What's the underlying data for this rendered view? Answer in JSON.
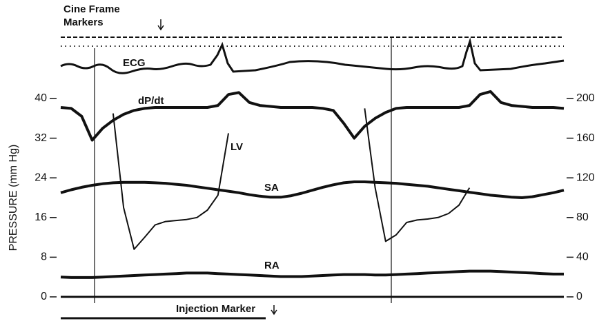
{
  "chart_data": {
    "type": "line",
    "top_label_lines": [
      "Cine Frame",
      "Markers"
    ],
    "ecg_label": "ECG",
    "injection_label": "Injection Marker",
    "ylabel": "PRESSURE (mm Hg)",
    "ylim": [
      0,
      40
    ],
    "yticks": [
      0,
      8,
      16,
      24,
      32,
      40
    ],
    "y2lim": [
      0,
      200
    ],
    "y2ticks": [
      0,
      40,
      80,
      120,
      160,
      200
    ],
    "series": [
      {
        "name": "dP/dt",
        "color": "#111111",
        "axis": "y2",
        "values": [
          191,
          190,
          182,
          158,
          170,
          178,
          184,
          188,
          190,
          191,
          191,
          191,
          191,
          191,
          191,
          193,
          204,
          206,
          196,
          193,
          192,
          191,
          191,
          191,
          191,
          190,
          188,
          175,
          160,
          172,
          180,
          186,
          190,
          191,
          191,
          191,
          191,
          191,
          191,
          193,
          204,
          207,
          196,
          193,
          192,
          191,
          191,
          191,
          190
        ]
      },
      {
        "name": "LV",
        "color": "#111111",
        "values": [
          null,
          null,
          null,
          null,
          null,
          37,
          18,
          9.6,
          12,
          14.5,
          15.2,
          15.4,
          15.6,
          16.0,
          17.5,
          20.5,
          33,
          null,
          null,
          null,
          null,
          null,
          null,
          null,
          null,
          null,
          null,
          null,
          null,
          38,
          22,
          11.2,
          12.5,
          15,
          15.5,
          15.7,
          16,
          16.8,
          18.5,
          22,
          null,
          null,
          null,
          null,
          null,
          null,
          null,
          null,
          null
        ]
      },
      {
        "name": "SA",
        "color": "#111111",
        "values": [
          21.0,
          21.6,
          22.1,
          22.5,
          22.8,
          23.0,
          23.1,
          23.1,
          23.1,
          23.0,
          22.9,
          22.7,
          22.5,
          22.2,
          21.9,
          21.6,
          21.3,
          21.0,
          20.6,
          20.3,
          20.1,
          20.1,
          20.4,
          20.9,
          21.5,
          22.1,
          22.6,
          23.0,
          23.2,
          23.2,
          23.1,
          23.0,
          22.9,
          22.7,
          22.5,
          22.3,
          22.0,
          21.7,
          21.4,
          21.1,
          20.8,
          20.5,
          20.3,
          20.1,
          20.0,
          20.2,
          20.6,
          21.0,
          21.5
        ]
      },
      {
        "name": "RA",
        "color": "#111111",
        "values": [
          4.0,
          3.9,
          3.9,
          3.9,
          4.0,
          4.1,
          4.2,
          4.3,
          4.4,
          4.5,
          4.6,
          4.7,
          4.8,
          4.8,
          4.8,
          4.7,
          4.6,
          4.5,
          4.4,
          4.3,
          4.2,
          4.1,
          4.1,
          4.1,
          4.2,
          4.3,
          4.4,
          4.5,
          4.5,
          4.5,
          4.4,
          4.4,
          4.5,
          4.6,
          4.7,
          4.8,
          4.9,
          5.0,
          5.1,
          5.2,
          5.2,
          5.2,
          5.1,
          5.0,
          4.9,
          4.8,
          4.7,
          4.6,
          4.6
        ]
      }
    ]
  }
}
